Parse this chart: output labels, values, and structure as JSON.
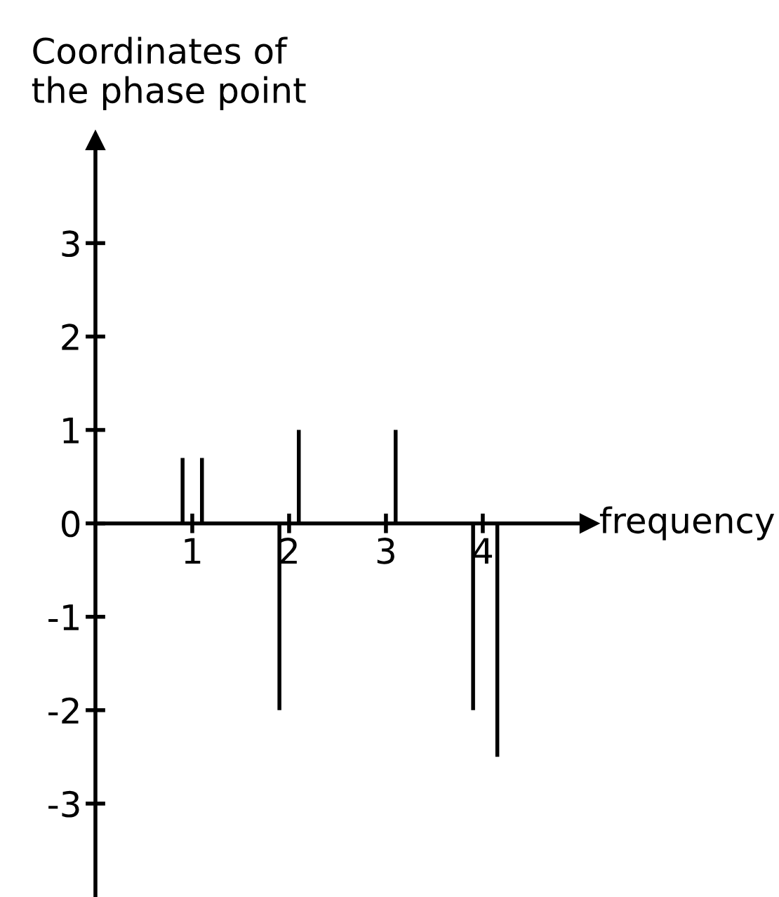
{
  "chart_data": {
    "type": "bar",
    "xlabel": "frequency",
    "ylabel": "Coordinates of\nthe phase point",
    "x": [
      0.9,
      1.1,
      1.9,
      2.1,
      3.1,
      3.9,
      4.15
    ],
    "values": [
      0.7,
      0.7,
      -2,
      1,
      1,
      -2,
      -2.5
    ],
    "color": "#000000",
    "xlim": [
      0,
      5.1
    ],
    "ylim": [
      -4,
      4.1
    ],
    "xticks": [
      1,
      2,
      3,
      4
    ],
    "yticks": [
      -3,
      -2,
      -1,
      0,
      1,
      2,
      3
    ]
  }
}
